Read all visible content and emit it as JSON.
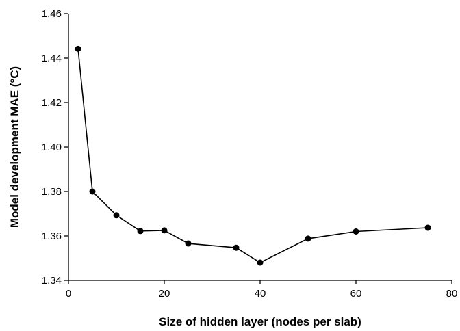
{
  "chart_data": {
    "type": "line",
    "title": "",
    "xlabel": "Size of hidden layer (nodes per slab)",
    "ylabel": "Model development MAE (°C)",
    "xlim": [
      0,
      80
    ],
    "ylim": [
      1.34,
      1.46
    ],
    "x_ticks": [
      "0",
      "20",
      "40",
      "60",
      "80"
    ],
    "y_ticks": [
      "1.34",
      "1.36",
      "1.38",
      "1.40",
      "1.42",
      "1.44",
      "1.46"
    ],
    "grid": false,
    "legend": "none",
    "series": [
      {
        "x": [
          2,
          5,
          10,
          15,
          20,
          25,
          35,
          40,
          50,
          60,
          75
        ],
        "y": [
          1.4442,
          1.38,
          1.3693,
          1.3622,
          1.3625,
          1.3566,
          1.3547,
          1.348,
          1.3588,
          1.362,
          1.3637
        ]
      }
    ],
    "colors": {
      "line": "#000000",
      "marker": "#000000",
      "axis": "#000000"
    }
  }
}
